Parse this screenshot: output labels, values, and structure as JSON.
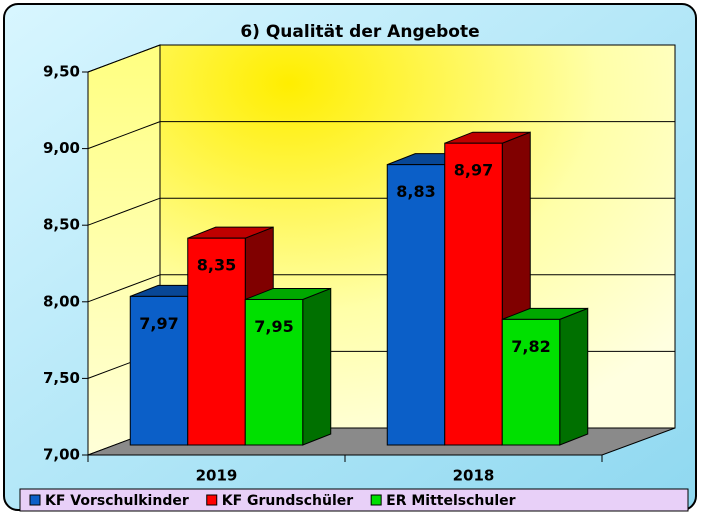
{
  "chart_data": {
    "type": "bar3d",
    "title": "6) Qualität der Angebote",
    "categories": [
      "2019",
      "2018"
    ],
    "series": [
      {
        "name": "KF Vorschulkinder",
        "color": "#0b5fc8",
        "values": [
          7.97,
          8.83
        ],
        "value_labels": [
          "7,97",
          "8,83"
        ]
      },
      {
        "name": "KF Grundschüler",
        "color": "#ff0000",
        "values": [
          8.35,
          8.97
        ],
        "value_labels": [
          "8,35",
          "8,97"
        ]
      },
      {
        "name": "ER Mittelschuler",
        "color": "#00e000",
        "values": [
          7.95,
          7.82
        ],
        "value_labels": [
          "7,95",
          "7,82"
        ]
      }
    ],
    "ylim": [
      7,
      9.5
    ],
    "yticks": [
      {
        "value": 7,
        "label": "7,00"
      },
      {
        "value": 7.5,
        "label": "7,50"
      },
      {
        "value": 8,
        "label": "8,00"
      },
      {
        "value": 8.5,
        "label": "8,50"
      },
      {
        "value": 9,
        "label": "9,00"
      },
      {
        "value": 9.5,
        "label": "9,50"
      }
    ],
    "grid": true,
    "legend": "bottom"
  }
}
